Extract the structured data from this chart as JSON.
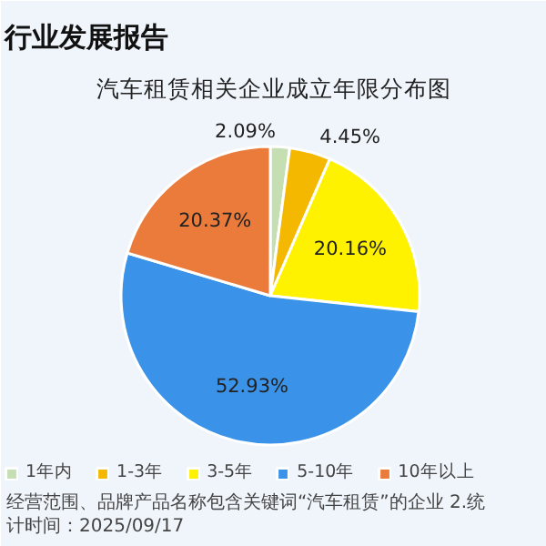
{
  "chart_data": {
    "type": "pie",
    "title": "汽车租赁相关企业成立年限分布图",
    "categories": [
      "1年内",
      "1-3年",
      "3-5年",
      "5-10年",
      "10年以上"
    ],
    "values": [
      2.09,
      4.45,
      20.16,
      52.93,
      20.37
    ],
    "colors": [
      "#c5dfb3",
      "#f5b800",
      "#fff200",
      "#3a93e8",
      "#ea7b3a"
    ],
    "value_labels": [
      "2.09%",
      "4.45%",
      "20.16%",
      "52.93%",
      "20.37%"
    ],
    "legend": "bottom",
    "annotations": [
      "行业发展报告",
      "经营范围、品牌产品名称包含关键词“汽车租赁”的企业  2.统计时间：2025/09/17"
    ]
  }
}
